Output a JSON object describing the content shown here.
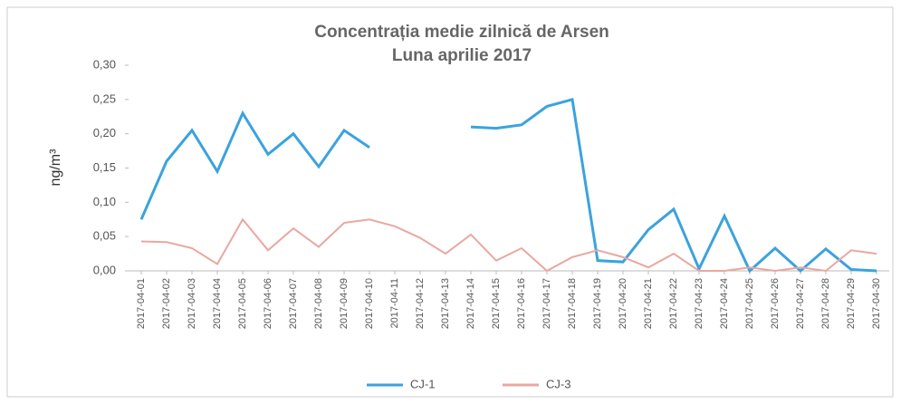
{
  "chart_data": {
    "type": "line",
    "title": "Concentrația medie zilnică de Arsen",
    "subtitle": "Luna aprilie 2017",
    "y_label": "ng/m³",
    "categories": [
      "2017-04-01",
      "2017-04-02",
      "2017-04-03",
      "2017-04-04",
      "2017-04-05",
      "2017-04-06",
      "2017-04-07",
      "2017-04-08",
      "2017-04-09",
      "2017-04-10",
      "2017-04-11",
      "2017-04-12",
      "2017-04-13",
      "2017-04-14",
      "2017-04-15",
      "2017-04-16",
      "2017-04-17",
      "2017-04-18",
      "2017-04-19",
      "2017-04-20",
      "2017-04-21",
      "2017-04-22",
      "2017-04-23",
      "2017-04-24",
      "2017-04-25",
      "2017-04-26",
      "2017-04-27",
      "2017-04-28",
      "2017-04-29",
      "2017-04-30"
    ],
    "series": [
      {
        "name": "CJ-1",
        "color": "#3ba3dc",
        "values": [
          0.075,
          0.16,
          0.205,
          0.145,
          0.23,
          0.17,
          0.2,
          0.152,
          0.205,
          0.18,
          null,
          null,
          null,
          0.21,
          0.208,
          0.213,
          0.24,
          0.25,
          0.015,
          0.013,
          0.06,
          0.09,
          0.003,
          0.08,
          0.0,
          0.033,
          0.0,
          0.032,
          0.002,
          0.0
        ]
      },
      {
        "name": "CJ-3",
        "color": "#e8a8a0",
        "values": [
          0.043,
          0.042,
          0.033,
          0.01,
          0.075,
          0.03,
          0.062,
          0.035,
          0.07,
          0.075,
          0.065,
          0.048,
          0.025,
          0.053,
          0.015,
          0.033,
          0.0,
          0.02,
          0.03,
          0.02,
          0.005,
          0.025,
          0.0,
          0.0,
          0.005,
          0.0,
          0.005,
          0.0,
          0.03,
          0.025
        ]
      }
    ],
    "ylim": [
      0,
      0.3
    ],
    "yticks": [
      {
        "value": 0,
        "label": "0,00"
      },
      {
        "value": 0.05,
        "label": "0,05"
      },
      {
        "value": 0.1,
        "label": "0,10"
      },
      {
        "value": 0.15,
        "label": "0,15"
      },
      {
        "value": 0.2,
        "label": "0,20"
      },
      {
        "value": 0.25,
        "label": "0,25"
      },
      {
        "value": 0.3,
        "label": "0,30"
      }
    ],
    "grid": false,
    "legend": "bottom"
  }
}
